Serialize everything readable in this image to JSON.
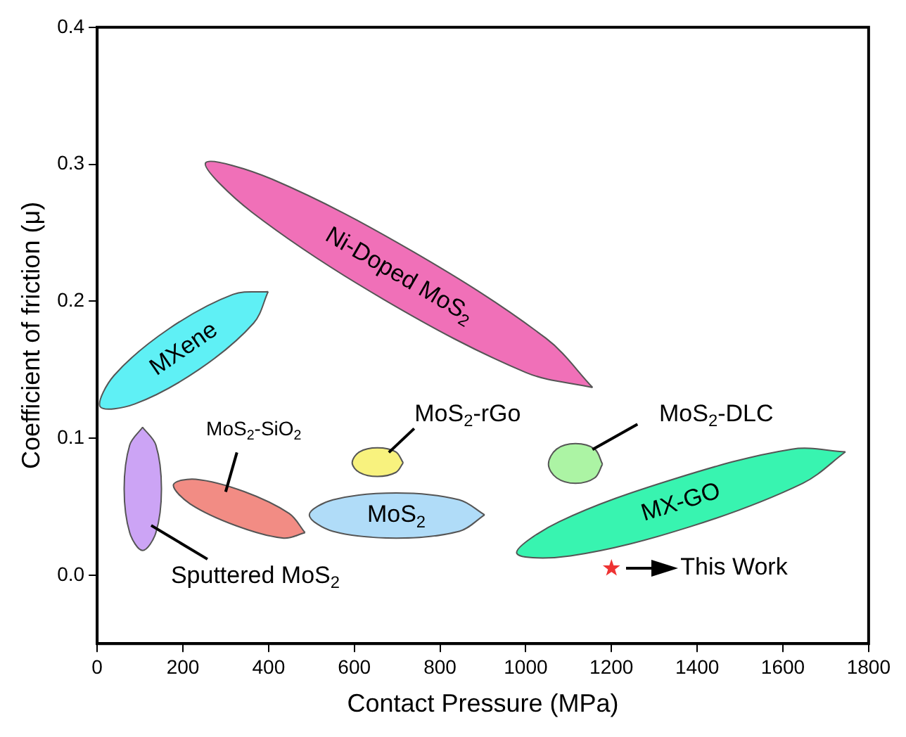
{
  "chart_data": {
    "type": "area",
    "xlabel": "Contact Pressure (MPa)",
    "ylabel": "Coefficient of friction (μ)",
    "xlim": [
      0,
      1800
    ],
    "xticks": [
      0,
      200,
      400,
      600,
      800,
      1000,
      1200,
      1400,
      1600,
      1800
    ],
    "ylim": [
      -0.05,
      0.4
    ],
    "yticks": [
      {
        "value": 0,
        "label": "0.0"
      },
      {
        "value": 0.1,
        "label": "0.1"
      },
      {
        "value": 0.2,
        "label": "0.2"
      },
      {
        "value": 0.3,
        "label": "0.3"
      },
      {
        "value": 0.4,
        "label": "0.4"
      }
    ],
    "grid": false,
    "series": [
      {
        "name": "MXene",
        "color": "#5ff0f5",
        "x": [
          399,
          365,
          237,
          88,
          7,
          40,
          168,
          317
        ],
        "values": [
          0.207,
          0.184,
          0.15,
          0.125,
          0.123,
          0.146,
          0.18,
          0.205
        ]
      },
      {
        "name": "Ni-Doped MoS$_{2}$",
        "color": "#f070b8",
        "x": [
          1156,
          1000,
          670,
          361,
          253,
          409,
          738,
          1047
        ],
        "values": [
          0.137,
          0.148,
          0.201,
          0.265,
          0.301,
          0.289,
          0.236,
          0.173
        ]
      },
      {
        "name": "Sputtered MoS$_{2}$",
        "color": "#cca4f5",
        "x": [
          106,
          137,
          150,
          137,
          106,
          76,
          63,
          76
        ],
        "values": [
          0.108,
          0.095,
          0.063,
          0.031,
          0.018,
          0.031,
          0.063,
          0.095
        ]
      },
      {
        "name": "MoS$_{2}$-SiO$_{2}$",
        "color": "#f28c84",
        "x": [
          485,
          435,
          325,
          217,
          178,
          230,
          343,
          448
        ],
        "values": [
          0.031,
          0.027,
          0.036,
          0.052,
          0.066,
          0.07,
          0.061,
          0.045
        ]
      },
      {
        "name": "MoS$_{2}$",
        "color": "#b0dcf8",
        "x": [
          904,
          845,
          698,
          550,
          495,
          550,
          698,
          845
        ],
        "values": [
          0.044,
          0.032,
          0.027,
          0.032,
          0.044,
          0.055,
          0.06,
          0.055
        ]
      },
      {
        "name": "MoS$_{2}$-rGo",
        "color": "#f8f27e",
        "x": [
          714,
          697,
          654,
          612,
          595,
          612,
          654,
          697
        ],
        "values": [
          0.082,
          0.075,
          0.072,
          0.075,
          0.082,
          0.09,
          0.093,
          0.09
        ]
      },
      {
        "name": "MoS$_{2}$-DLC",
        "color": "#acf4a4",
        "x": [
          1179,
          1161,
          1116,
          1072,
          1053,
          1072,
          1116,
          1161
        ],
        "values": [
          0.081,
          0.071,
          0.067,
          0.071,
          0.081,
          0.092,
          0.096,
          0.092
        ]
      },
      {
        "name": "MX-GO",
        "color": "#38f4b0",
        "x": [
          1746,
          1646,
          1380,
          1104,
          979,
          1078,
          1344,
          1621
        ],
        "values": [
          0.09,
          0.067,
          0.035,
          0.014,
          0.016,
          0.039,
          0.07,
          0.092
        ]
      },
      {
        "type": "scatter",
        "color": "#ee3333",
        "marker": "star",
        "x": [
          1200
        ],
        "values": [
          0.005
        ]
      }
    ],
    "annotations": [
      {
        "text": "This Work",
        "x": 1200,
        "y": 0.005
      }
    ]
  }
}
